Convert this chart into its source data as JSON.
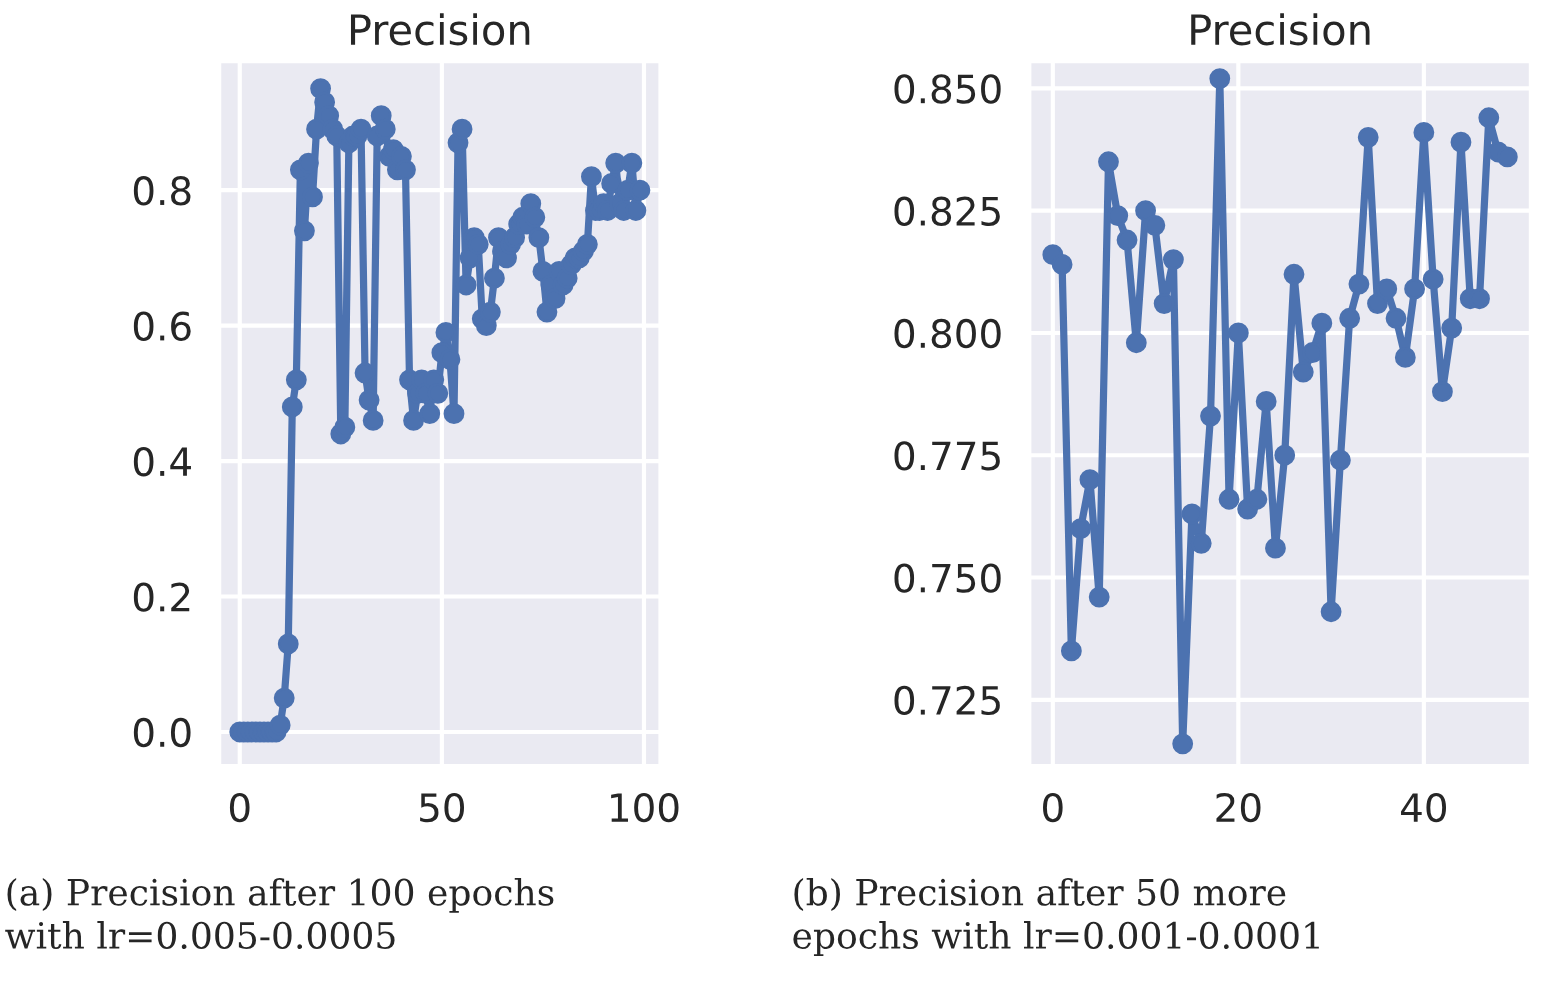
{
  "chart_data": [
    {
      "type": "line",
      "title": "Precision",
      "x": [
        0,
        1,
        2,
        3,
        4,
        5,
        6,
        7,
        8,
        9,
        10,
        11,
        12,
        13,
        14,
        15,
        16,
        17,
        18,
        19,
        20,
        21,
        22,
        23,
        24,
        25,
        26,
        27,
        28,
        29,
        30,
        31,
        32,
        33,
        34,
        35,
        36,
        37,
        38,
        39,
        40,
        41,
        42,
        43,
        44,
        45,
        46,
        47,
        48,
        49,
        50,
        51,
        52,
        53,
        54,
        55,
        56,
        57,
        58,
        59,
        60,
        61,
        62,
        63,
        64,
        65,
        66,
        67,
        68,
        69,
        70,
        71,
        72,
        73,
        74,
        75,
        76,
        77,
        78,
        79,
        80,
        81,
        82,
        83,
        84,
        85,
        86,
        87,
        88,
        89,
        90,
        91,
        92,
        93,
        94,
        95,
        96,
        97,
        98,
        99
      ],
      "series": [
        {
          "color": "#4c72b0",
          "values": [
            0,
            0,
            0,
            0,
            0,
            0,
            0,
            0,
            0,
            0,
            0.01,
            0.05,
            0.13,
            0.48,
            0.52,
            0.83,
            0.74,
            0.84,
            0.79,
            0.89,
            0.95,
            0.93,
            0.91,
            0.89,
            0.88,
            0.44,
            0.45,
            0.87,
            0.88,
            0.88,
            0.89,
            0.53,
            0.49,
            0.46,
            0.88,
            0.91,
            0.89,
            0.85,
            0.86,
            0.83,
            0.85,
            0.83,
            0.52,
            0.46,
            0.5,
            0.52,
            0.5,
            0.47,
            0.52,
            0.5,
            0.56,
            0.59,
            0.55,
            0.47,
            0.87,
            0.89,
            0.66,
            0.7,
            0.73,
            0.72,
            0.61,
            0.6,
            0.62,
            0.67,
            0.73,
            0.71,
            0.7,
            0.72,
            0.73,
            0.75,
            0.76,
            0.75,
            0.78,
            0.76,
            0.73,
            0.68,
            0.62,
            0.66,
            0.64,
            0.68,
            0.66,
            0.67,
            0.69,
            0.7,
            0.7,
            0.71,
            0.72,
            0.82,
            0.77,
            0.77,
            0.78,
            0.77,
            0.81,
            0.84,
            0.78,
            0.77,
            0.8,
            0.84,
            0.77,
            0.8
          ]
        }
      ],
      "xlim": [
        -5,
        104
      ],
      "ylim": [
        -0.05,
        0.99
      ],
      "xticks": [
        0,
        50,
        100
      ],
      "yticks": [
        {
          "value": 0,
          "label": "0.0"
        },
        {
          "value": 0.2,
          "label": "0.2"
        },
        {
          "value": 0.4,
          "label": "0.4"
        },
        {
          "value": 0.6,
          "label": "0.6"
        },
        {
          "value": 0.8,
          "label": "0.8"
        }
      ],
      "grid": true,
      "marker": "circle",
      "line_style": "solid",
      "annotations": [
        "(a) Precision after 100 epochs\nwith lr=0.005-0.0005"
      ]
    },
    {
      "type": "line",
      "title": "Precision",
      "x": [
        0,
        1,
        2,
        3,
        4,
        5,
        6,
        7,
        8,
        9,
        10,
        11,
        12,
        13,
        14,
        15,
        16,
        17,
        18,
        19,
        20,
        21,
        22,
        23,
        24,
        25,
        26,
        27,
        28,
        29,
        30,
        31,
        32,
        33,
        34,
        35,
        36,
        37,
        38,
        39,
        40,
        41,
        42,
        43,
        44,
        45,
        46,
        47,
        48,
        49
      ],
      "series": [
        {
          "color": "#4c72b0",
          "values": [
            0.816,
            0.814,
            0.735,
            0.76,
            0.77,
            0.746,
            0.835,
            0.824,
            0.819,
            0.798,
            0.825,
            0.822,
            0.806,
            0.815,
            0.716,
            0.763,
            0.757,
            0.783,
            0.852,
            0.766,
            0.8,
            0.764,
            0.766,
            0.786,
            0.756,
            0.775,
            0.812,
            0.792,
            0.796,
            0.802,
            0.743,
            0.774,
            0.803,
            0.81,
            0.84,
            0.806,
            0.809,
            0.803,
            0.795,
            0.809,
            0.841,
            0.811,
            0.788,
            0.801,
            0.839,
            0.807,
            0.807,
            0.844,
            0.837,
            0.836
          ]
        }
      ],
      "xlim": [
        -2.5,
        51.5
      ],
      "ylim": [
        0.7115,
        0.8555
      ],
      "xticks": [
        0,
        20,
        40
      ],
      "yticks": [
        {
          "value": 0.725,
          "label": "0.725"
        },
        {
          "value": 0.75,
          "label": "0.750"
        },
        {
          "value": 0.775,
          "label": "0.775"
        },
        {
          "value": 0.8,
          "label": "0.800"
        },
        {
          "value": 0.825,
          "label": "0.825"
        },
        {
          "value": 0.85,
          "label": "0.850"
        }
      ],
      "grid": true,
      "marker": "circle",
      "line_style": "solid",
      "annotations": [
        "(b) Precision after 50 more\nepochs with lr=0.001-0.0001"
      ]
    }
  ]
}
